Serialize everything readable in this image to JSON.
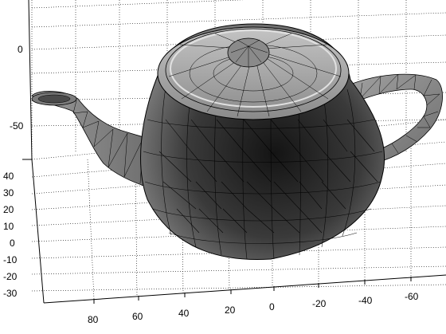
{
  "figure": {
    "axes": {
      "z_ticks": [
        "0",
        "-50"
      ],
      "y_ticks": [
        "40",
        "30",
        "20",
        "10",
        "0",
        "-10",
        "-20",
        "-30"
      ],
      "x_ticks": [
        "80",
        "60",
        "40",
        "20",
        "0",
        "-20",
        "-40",
        "-60"
      ]
    },
    "colors": {
      "background": "#ffffff",
      "grid": "#000000",
      "mesh_edge": "#000000",
      "surface_light": "#a9a9a9",
      "surface_mid": "#6e6e6e",
      "surface_dark": "#1e1e1e"
    },
    "object": "teapot-mesh",
    "grid": true
  }
}
